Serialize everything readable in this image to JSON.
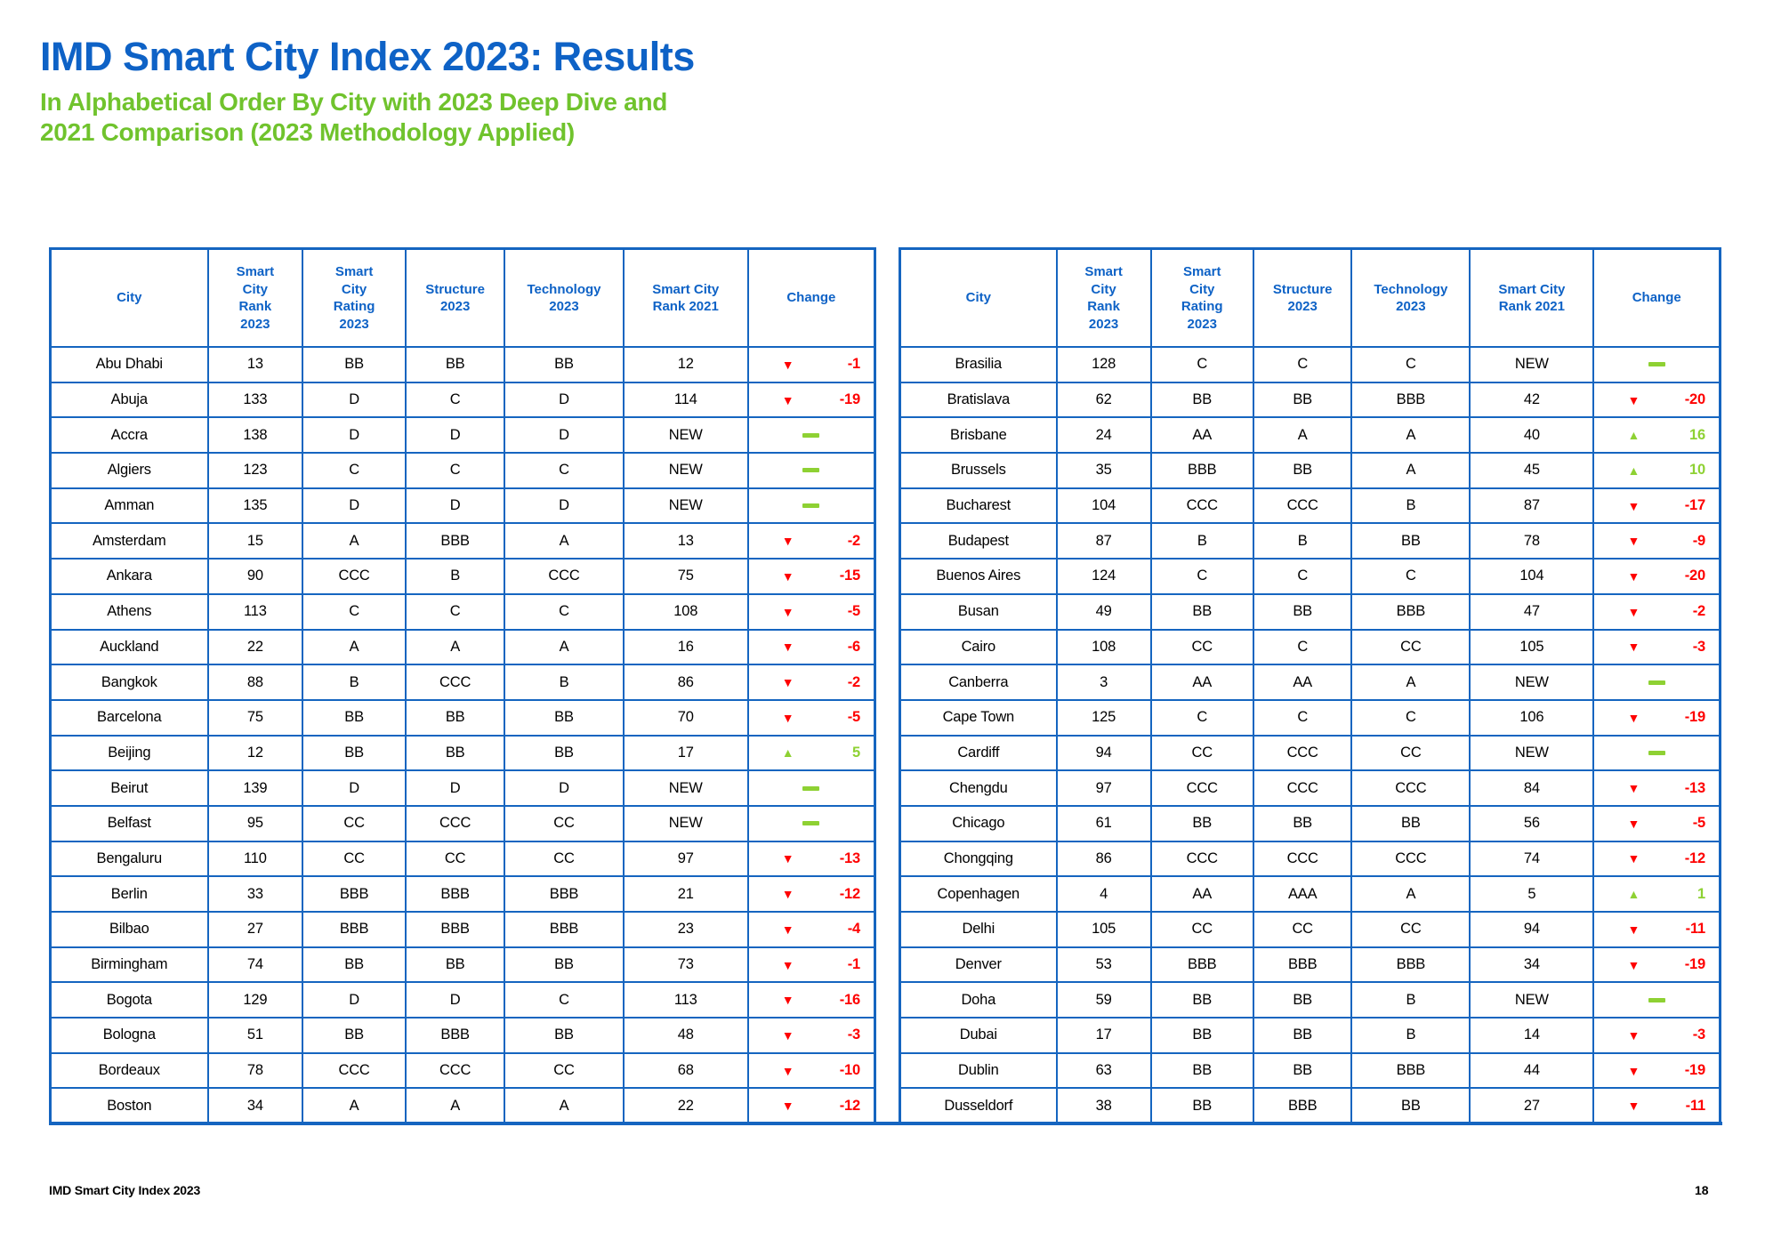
{
  "header": {
    "title": "IMD Smart City Index 2023: Results",
    "subtitle_line1": "In Alphabetical Order By City with 2023 Deep Dive and",
    "subtitle_line2": "2021 Comparison (2023 Methodology Applied)"
  },
  "footer": {
    "label": "IMD Smart City Index 2023",
    "page_number": "18"
  },
  "colors": {
    "title_blue": "#0e62c6",
    "subtitle_green": "#70c32d",
    "table_border_blue": "#1565c0",
    "up_green": "#8ed133",
    "down_red": "#fe0000"
  },
  "tables": {
    "headers": [
      "City",
      "Smart\nCity\nRank\n2023",
      "Smart\nCity\nRating\n2023",
      "Structure\n2023",
      "Technology\n2023",
      "Smart City\nRank 2021",
      "Change"
    ],
    "column_widths_pct": [
      19.1,
      11.5,
      12.5,
      12.0,
      14.4,
      15.1,
      15.4
    ],
    "left": {
      "rows": [
        {
          "city": "Abu Dhabi",
          "rank_2023": "13",
          "rating_2023": "BB",
          "structure_2023": "BB",
          "technology_2023": "BB",
          "rank_2021": "12",
          "change": {
            "dir": "down",
            "value": "-1"
          }
        },
        {
          "city": "Abuja",
          "rank_2023": "133",
          "rating_2023": "D",
          "structure_2023": "C",
          "technology_2023": "D",
          "rank_2021": "114",
          "change": {
            "dir": "down",
            "value": "-19"
          }
        },
        {
          "city": "Accra",
          "rank_2023": "138",
          "rating_2023": "D",
          "structure_2023": "D",
          "technology_2023": "D",
          "rank_2021": "NEW",
          "change": {
            "dir": "none",
            "value": ""
          }
        },
        {
          "city": "Algiers",
          "rank_2023": "123",
          "rating_2023": "C",
          "structure_2023": "C",
          "technology_2023": "C",
          "rank_2021": "NEW",
          "change": {
            "dir": "none",
            "value": ""
          }
        },
        {
          "city": "Amman",
          "rank_2023": "135",
          "rating_2023": "D",
          "structure_2023": "D",
          "technology_2023": "D",
          "rank_2021": "NEW",
          "change": {
            "dir": "none",
            "value": ""
          }
        },
        {
          "city": "Amsterdam",
          "rank_2023": "15",
          "rating_2023": "A",
          "structure_2023": "BBB",
          "technology_2023": "A",
          "rank_2021": "13",
          "change": {
            "dir": "down",
            "value": "-2"
          }
        },
        {
          "city": "Ankara",
          "rank_2023": "90",
          "rating_2023": "CCC",
          "structure_2023": "B",
          "technology_2023": "CCC",
          "rank_2021": "75",
          "change": {
            "dir": "down",
            "value": "-15"
          }
        },
        {
          "city": "Athens",
          "rank_2023": "113",
          "rating_2023": "C",
          "structure_2023": "C",
          "technology_2023": "C",
          "rank_2021": "108",
          "change": {
            "dir": "down",
            "value": "-5"
          }
        },
        {
          "city": "Auckland",
          "rank_2023": "22",
          "rating_2023": "A",
          "structure_2023": "A",
          "technology_2023": "A",
          "rank_2021": "16",
          "change": {
            "dir": "down",
            "value": "-6"
          }
        },
        {
          "city": "Bangkok",
          "rank_2023": "88",
          "rating_2023": "B",
          "structure_2023": "CCC",
          "technology_2023": "B",
          "rank_2021": "86",
          "change": {
            "dir": "down",
            "value": "-2"
          }
        },
        {
          "city": "Barcelona",
          "rank_2023": "75",
          "rating_2023": "BB",
          "structure_2023": "BB",
          "technology_2023": "BB",
          "rank_2021": "70",
          "change": {
            "dir": "down",
            "value": "-5"
          }
        },
        {
          "city": "Beijing",
          "rank_2023": "12",
          "rating_2023": "BB",
          "structure_2023": "BB",
          "technology_2023": "BB",
          "rank_2021": "17",
          "change": {
            "dir": "up",
            "value": "5"
          }
        },
        {
          "city": "Beirut",
          "rank_2023": "139",
          "rating_2023": "D",
          "structure_2023": "D",
          "technology_2023": "D",
          "rank_2021": "NEW",
          "change": {
            "dir": "none",
            "value": ""
          }
        },
        {
          "city": "Belfast",
          "rank_2023": "95",
          "rating_2023": "CC",
          "structure_2023": "CCC",
          "technology_2023": "CC",
          "rank_2021": "NEW",
          "change": {
            "dir": "none",
            "value": ""
          }
        },
        {
          "city": "Bengaluru",
          "rank_2023": "110",
          "rating_2023": "CC",
          "structure_2023": "CC",
          "technology_2023": "CC",
          "rank_2021": "97",
          "change": {
            "dir": "down",
            "value": "-13"
          }
        },
        {
          "city": "Berlin",
          "rank_2023": "33",
          "rating_2023": "BBB",
          "structure_2023": "BBB",
          "technology_2023": "BBB",
          "rank_2021": "21",
          "change": {
            "dir": "down",
            "value": "-12"
          }
        },
        {
          "city": "Bilbao",
          "rank_2023": "27",
          "rating_2023": "BBB",
          "structure_2023": "BBB",
          "technology_2023": "BBB",
          "rank_2021": "23",
          "change": {
            "dir": "down",
            "value": "-4"
          }
        },
        {
          "city": "Birmingham",
          "rank_2023": "74",
          "rating_2023": "BB",
          "structure_2023": "BB",
          "technology_2023": "BB",
          "rank_2021": "73",
          "change": {
            "dir": "down",
            "value": "-1"
          }
        },
        {
          "city": "Bogota",
          "rank_2023": "129",
          "rating_2023": "D",
          "structure_2023": "D",
          "technology_2023": "C",
          "rank_2021": "113",
          "change": {
            "dir": "down",
            "value": "-16"
          }
        },
        {
          "city": "Bologna",
          "rank_2023": "51",
          "rating_2023": "BB",
          "structure_2023": "BBB",
          "technology_2023": "BB",
          "rank_2021": "48",
          "change": {
            "dir": "down",
            "value": "-3"
          }
        },
        {
          "city": "Bordeaux",
          "rank_2023": "78",
          "rating_2023": "CCC",
          "structure_2023": "CCC",
          "technology_2023": "CC",
          "rank_2021": "68",
          "change": {
            "dir": "down",
            "value": "-10"
          }
        },
        {
          "city": "Boston",
          "rank_2023": "34",
          "rating_2023": "A",
          "structure_2023": "A",
          "technology_2023": "A",
          "rank_2021": "22",
          "change": {
            "dir": "down",
            "value": "-12"
          }
        }
      ]
    },
    "right": {
      "rows": [
        {
          "city": "Brasilia",
          "rank_2023": "128",
          "rating_2023": "C",
          "structure_2023": "C",
          "technology_2023": "C",
          "rank_2021": "NEW",
          "change": {
            "dir": "none",
            "value": ""
          }
        },
        {
          "city": "Bratislava",
          "rank_2023": "62",
          "rating_2023": "BB",
          "structure_2023": "BB",
          "technology_2023": "BBB",
          "rank_2021": "42",
          "change": {
            "dir": "down",
            "value": "-20"
          }
        },
        {
          "city": "Brisbane",
          "rank_2023": "24",
          "rating_2023": "AA",
          "structure_2023": "A",
          "technology_2023": "A",
          "rank_2021": "40",
          "change": {
            "dir": "up",
            "value": "16"
          }
        },
        {
          "city": "Brussels",
          "rank_2023": "35",
          "rating_2023": "BBB",
          "structure_2023": "BB",
          "technology_2023": "A",
          "rank_2021": "45",
          "change": {
            "dir": "up",
            "value": "10"
          }
        },
        {
          "city": "Bucharest",
          "rank_2023": "104",
          "rating_2023": "CCC",
          "structure_2023": "CCC",
          "technology_2023": "B",
          "rank_2021": "87",
          "change": {
            "dir": "down",
            "value": "-17"
          }
        },
        {
          "city": "Budapest",
          "rank_2023": "87",
          "rating_2023": "B",
          "structure_2023": "B",
          "technology_2023": "BB",
          "rank_2021": "78",
          "change": {
            "dir": "down",
            "value": "-9"
          }
        },
        {
          "city": "Buenos Aires",
          "rank_2023": "124",
          "rating_2023": "C",
          "structure_2023": "C",
          "technology_2023": "C",
          "rank_2021": "104",
          "change": {
            "dir": "down",
            "value": "-20"
          }
        },
        {
          "city": "Busan",
          "rank_2023": "49",
          "rating_2023": "BB",
          "structure_2023": "BB",
          "technology_2023": "BBB",
          "rank_2021": "47",
          "change": {
            "dir": "down",
            "value": "-2"
          }
        },
        {
          "city": "Cairo",
          "rank_2023": "108",
          "rating_2023": "CC",
          "structure_2023": "C",
          "technology_2023": "CC",
          "rank_2021": "105",
          "change": {
            "dir": "down",
            "value": "-3"
          }
        },
        {
          "city": "Canberra",
          "rank_2023": "3",
          "rating_2023": "AA",
          "structure_2023": "AA",
          "technology_2023": "A",
          "rank_2021": "NEW",
          "change": {
            "dir": "none",
            "value": ""
          }
        },
        {
          "city": "Cape Town",
          "rank_2023": "125",
          "rating_2023": "C",
          "structure_2023": "C",
          "technology_2023": "C",
          "rank_2021": "106",
          "change": {
            "dir": "down",
            "value": "-19"
          }
        },
        {
          "city": "Cardiff",
          "rank_2023": "94",
          "rating_2023": "CC",
          "structure_2023": "CCC",
          "technology_2023": "CC",
          "rank_2021": "NEW",
          "change": {
            "dir": "none",
            "value": ""
          }
        },
        {
          "city": "Chengdu",
          "rank_2023": "97",
          "rating_2023": "CCC",
          "structure_2023": "CCC",
          "technology_2023": "CCC",
          "rank_2021": "84",
          "change": {
            "dir": "down",
            "value": "-13"
          }
        },
        {
          "city": "Chicago",
          "rank_2023": "61",
          "rating_2023": "BB",
          "structure_2023": "BB",
          "technology_2023": "BB",
          "rank_2021": "56",
          "change": {
            "dir": "down",
            "value": "-5"
          }
        },
        {
          "city": "Chongqing",
          "rank_2023": "86",
          "rating_2023": "CCC",
          "structure_2023": "CCC",
          "technology_2023": "CCC",
          "rank_2021": "74",
          "change": {
            "dir": "down",
            "value": "-12"
          }
        },
        {
          "city": "Copenhagen",
          "rank_2023": "4",
          "rating_2023": "AA",
          "structure_2023": "AAA",
          "technology_2023": "A",
          "rank_2021": "5",
          "change": {
            "dir": "up",
            "value": "1"
          }
        },
        {
          "city": "Delhi",
          "rank_2023": "105",
          "rating_2023": "CC",
          "structure_2023": "CC",
          "technology_2023": "CC",
          "rank_2021": "94",
          "change": {
            "dir": "down",
            "value": "-11"
          }
        },
        {
          "city": "Denver",
          "rank_2023": "53",
          "rating_2023": "BBB",
          "structure_2023": "BBB",
          "technology_2023": "BBB",
          "rank_2021": "34",
          "change": {
            "dir": "down",
            "value": "-19"
          }
        },
        {
          "city": "Doha",
          "rank_2023": "59",
          "rating_2023": "BB",
          "structure_2023": "BB",
          "technology_2023": "B",
          "rank_2021": "NEW",
          "change": {
            "dir": "none",
            "value": ""
          }
        },
        {
          "city": "Dubai",
          "rank_2023": "17",
          "rating_2023": "BB",
          "structure_2023": "BB",
          "technology_2023": "B",
          "rank_2021": "14",
          "change": {
            "dir": "down",
            "value": "-3"
          }
        },
        {
          "city": "Dublin",
          "rank_2023": "63",
          "rating_2023": "BB",
          "structure_2023": "BB",
          "technology_2023": "BBB",
          "rank_2021": "44",
          "change": {
            "dir": "down",
            "value": "-19"
          }
        },
        {
          "city": "Dusseldorf",
          "rank_2023": "38",
          "rating_2023": "BB",
          "structure_2023": "BBB",
          "technology_2023": "BB",
          "rank_2021": "27",
          "change": {
            "dir": "down",
            "value": "-11"
          }
        }
      ]
    }
  }
}
